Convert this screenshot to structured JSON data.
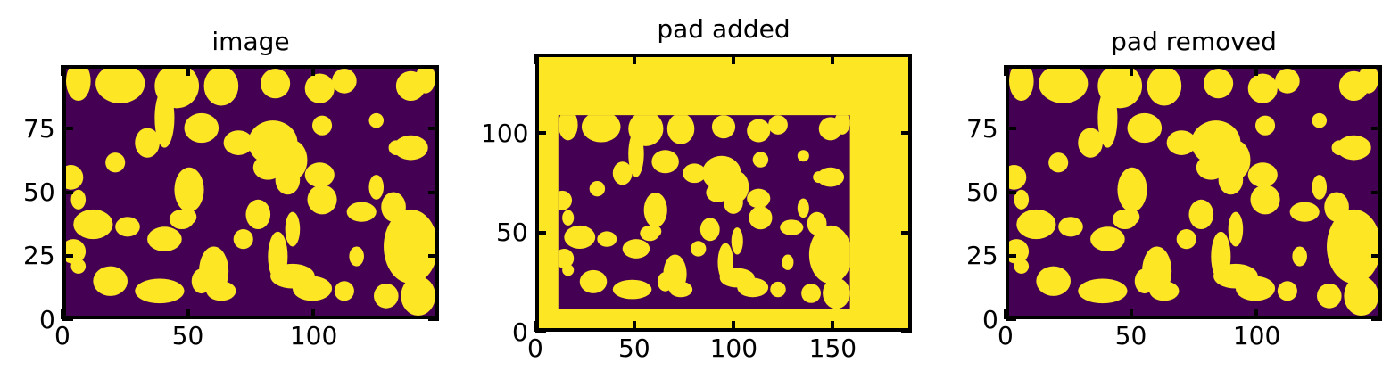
{
  "colors": {
    "background_region": "#440154",
    "foreground_region": "#fde725",
    "axes": "#000000"
  },
  "chart_data": [
    {
      "type": "heatmap",
      "title": "image",
      "xlim": [
        0,
        150
      ],
      "ylim": [
        0,
        100
      ],
      "xticks": [
        0,
        50,
        100
      ],
      "yticks": [
        0,
        25,
        50,
        75
      ],
      "colormap": "viridis",
      "values": [
        0,
        1
      ]
    },
    {
      "type": "heatmap",
      "title": "pad added",
      "xlim": [
        0,
        190
      ],
      "ylim": [
        0,
        140
      ],
      "xticks": [
        0,
        50,
        100,
        150
      ],
      "yticks": [
        0,
        50,
        100
      ],
      "colormap": "viridis",
      "values": [
        0,
        1
      ],
      "inner_image_extent": {
        "x": [
          10,
          160
        ],
        "y": [
          10,
          110
        ]
      }
    },
    {
      "type": "heatmap",
      "title": "pad removed",
      "xlim": [
        0,
        150
      ],
      "ylim": [
        0,
        100
      ],
      "xticks": [
        0,
        50,
        100
      ],
      "yticks": [
        0,
        25,
        50,
        75
      ],
      "colormap": "viridis",
      "values": [
        0,
        1
      ]
    }
  ]
}
